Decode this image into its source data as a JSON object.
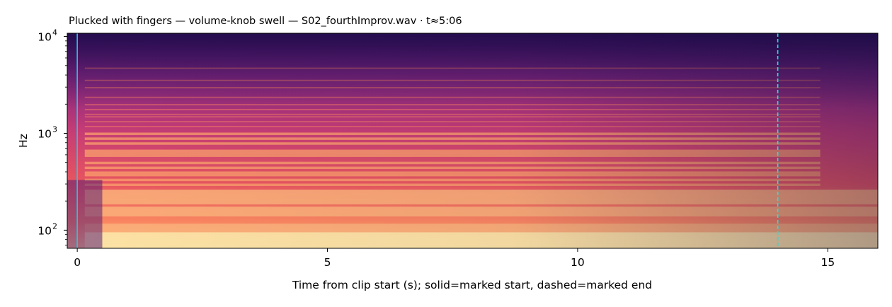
{
  "chart_data": {
    "type": "heatmap",
    "subtype": "spectrogram",
    "title": "Plucked with fingers — volume-knob swell  —  S02_fourthImprov.wav · t≈5:06",
    "xlabel": "Time from clip start (s); solid=marked start, dashed=marked end",
    "ylabel": "Hz",
    "x_scale": "linear",
    "y_scale": "log",
    "xlim": [
      -0.2,
      16.0
    ],
    "ylim": [
      65,
      10800
    ],
    "x_ticks": [
      {
        "value": 0,
        "label": "0"
      },
      {
        "value": 5,
        "label": "5"
      },
      {
        "value": 10,
        "label": "10"
      },
      {
        "value": 15,
        "label": "15"
      }
    ],
    "y_ticks": [
      {
        "value": 100,
        "label": "10",
        "exponent": "2"
      },
      {
        "value": 1000,
        "label": "10",
        "exponent": "3"
      },
      {
        "value": 10000,
        "label": "10",
        "exponent": "4"
      }
    ],
    "colormap": "magma",
    "markers": [
      {
        "name": "marked start",
        "time": 0.0,
        "style": "solid",
        "color": "#1ec8e6"
      },
      {
        "name": "marked end",
        "time": 14.0,
        "style": "dashed",
        "color": "#12e6e6"
      }
    ],
    "harmonic_bands_hz": [
      73,
      82,
      98,
      110,
      147,
      165,
      196,
      220,
      247,
      294,
      330,
      370,
      392,
      440,
      494,
      587,
      622,
      659,
      784,
      880,
      988,
      1175,
      1319,
      1480,
      1568,
      1760,
      1976,
      2350,
      2960,
      3520,
      4700
    ]
  }
}
